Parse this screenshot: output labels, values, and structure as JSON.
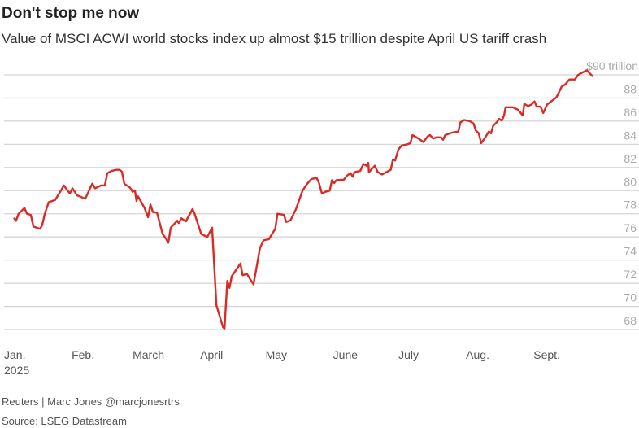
{
  "chart_data": {
    "type": "line",
    "title": "Don't stop me now",
    "subtitle": "Value of MSCI ACWI world stocks index up almost $15 trillion despite April US tariff crash",
    "xlabel": "",
    "ylabel": "$ trillion",
    "y_top_label": "$90 trillion",
    "ylim": [
      68,
      90
    ],
    "yticks": [
      68,
      70,
      72,
      74,
      76,
      78,
      80,
      82,
      84,
      86,
      88
    ],
    "xlim_days": [
      0,
      270
    ],
    "xticks": [
      {
        "day": 0,
        "label": "Jan."
      },
      {
        "day": 31,
        "label": "Feb."
      },
      {
        "day": 59,
        "label": "March"
      },
      {
        "day": 90,
        "label": "April"
      },
      {
        "day": 120,
        "label": "May"
      },
      {
        "day": 151,
        "label": "June"
      },
      {
        "day": 181,
        "label": "July"
      },
      {
        "day": 212,
        "label": "Aug."
      },
      {
        "day": 243,
        "label": "Sept."
      }
    ],
    "year_label": "2025",
    "grid": true,
    "line_color": "#d92b25",
    "series": [
      {
        "name": "MSCI ACWI market value ($ trillion)",
        "points": [
          [
            0,
            77.65
          ],
          [
            1,
            77.4
          ],
          [
            2.2,
            78.0
          ],
          [
            4.9,
            78.5
          ],
          [
            6,
            78.0
          ],
          [
            7.8,
            77.9
          ],
          [
            9,
            76.9
          ],
          [
            12,
            76.7
          ],
          [
            13,
            77.0
          ],
          [
            14.2,
            78.0
          ],
          [
            16,
            79.0
          ],
          [
            19,
            79.2
          ],
          [
            21.6,
            80.0
          ],
          [
            23,
            80.45
          ],
          [
            25.7,
            79.75
          ],
          [
            26.9,
            80.2
          ],
          [
            29,
            79.6
          ],
          [
            32.8,
            79.3
          ],
          [
            35,
            80.2
          ],
          [
            36,
            80.6
          ],
          [
            37.3,
            80.2
          ],
          [
            40,
            80.45
          ],
          [
            41.8,
            80.45
          ],
          [
            42.9,
            81.5
          ],
          [
            44.8,
            81.7
          ],
          [
            47,
            81.8
          ],
          [
            48.5,
            81.8
          ],
          [
            49.6,
            81.65
          ],
          [
            50.7,
            80.6
          ],
          [
            53.4,
            80.25
          ],
          [
            54.5,
            79.9
          ],
          [
            55.6,
            80.0
          ],
          [
            56.3,
            79.1
          ],
          [
            57,
            79.5
          ],
          [
            60,
            78.5
          ],
          [
            61.6,
            77.7
          ],
          [
            62.7,
            78.8
          ],
          [
            63.8,
            78.15
          ],
          [
            65.7,
            78.1
          ],
          [
            68.3,
            76.25
          ],
          [
            70,
            75.8
          ],
          [
            70.9,
            75.5
          ],
          [
            72,
            76.8
          ],
          [
            75,
            77.4
          ],
          [
            75.7,
            77.2
          ],
          [
            76.9,
            77.6
          ],
          [
            79,
            77.35
          ],
          [
            82,
            78.4
          ],
          [
            83,
            78.0
          ],
          [
            86,
            76.25
          ],
          [
            88.8,
            76.0
          ],
          [
            91,
            76.8
          ],
          [
            93,
            70.1
          ],
          [
            96,
            68.2
          ],
          [
            96.7,
            68.1
          ],
          [
            98,
            72.2
          ],
          [
            99,
            71.6
          ],
          [
            100,
            72.6
          ],
          [
            104,
            73.7
          ],
          [
            105,
            72.7
          ],
          [
            107,
            72.8
          ],
          [
            110,
            71.9
          ],
          [
            113,
            75.05
          ],
          [
            114.6,
            75.7
          ],
          [
            117,
            75.8
          ],
          [
            118.7,
            76.3
          ],
          [
            120,
            76.7
          ],
          [
            121,
            78.0
          ],
          [
            124,
            77.9
          ],
          [
            125,
            77.3
          ],
          [
            127,
            77.45
          ],
          [
            129.5,
            78.4
          ],
          [
            132.5,
            80.0
          ],
          [
            134.7,
            80.6
          ],
          [
            136.6,
            81.0
          ],
          [
            139,
            81.1
          ],
          [
            140,
            80.7
          ],
          [
            141.4,
            79.75
          ],
          [
            143,
            79.9
          ],
          [
            145,
            80.0
          ],
          [
            146,
            80.9
          ],
          [
            147,
            80.65
          ],
          [
            148,
            80.9
          ],
          [
            151.5,
            80.95
          ],
          [
            153,
            81.3
          ],
          [
            154.5,
            81.5
          ],
          [
            155.6,
            81.2
          ],
          [
            156.3,
            81.6
          ],
          [
            159,
            81.7
          ],
          [
            160.4,
            82.3
          ],
          [
            161.9,
            82.15
          ],
          [
            162.7,
            82.4
          ],
          [
            163,
            81.6
          ],
          [
            165.7,
            82.15
          ],
          [
            167,
            81.6
          ],
          [
            169,
            81.4
          ],
          [
            173,
            81.8
          ],
          [
            174,
            82.7
          ],
          [
            175,
            82.6
          ],
          [
            176.5,
            83.55
          ],
          [
            178,
            83.9
          ],
          [
            180.6,
            84.0
          ],
          [
            182,
            84.1
          ],
          [
            183,
            84.8
          ],
          [
            185.8,
            84.5
          ],
          [
            188,
            84.2
          ],
          [
            190,
            84.7
          ],
          [
            191,
            84.8
          ],
          [
            192.5,
            84.5
          ],
          [
            194,
            84.6
          ],
          [
            196,
            84.6
          ],
          [
            197,
            84.4
          ],
          [
            198,
            84.8
          ],
          [
            201,
            85.0
          ],
          [
            204,
            85.1
          ],
          [
            205,
            85.9
          ],
          [
            206.7,
            86.1
          ],
          [
            209.3,
            86.0
          ],
          [
            211,
            85.8
          ],
          [
            212,
            85.2
          ],
          [
            213.4,
            84.95
          ],
          [
            214.5,
            84.1
          ],
          [
            216.4,
            84.6
          ],
          [
            218,
            85.1
          ],
          [
            219,
            84.95
          ],
          [
            220,
            85.6
          ],
          [
            221.6,
            85.9
          ],
          [
            222.8,
            86.2
          ],
          [
            224,
            86.05
          ],
          [
            225,
            86.5
          ],
          [
            225.7,
            87.2
          ],
          [
            229,
            87.2
          ],
          [
            231.3,
            87.0
          ],
          [
            233.6,
            86.5
          ],
          [
            234.3,
            87.5
          ],
          [
            236,
            87.3
          ],
          [
            237.7,
            87.45
          ],
          [
            239,
            87.7
          ],
          [
            240,
            87.25
          ],
          [
            241.8,
            87.25
          ],
          [
            243,
            86.7
          ],
          [
            244.8,
            87.45
          ],
          [
            246.6,
            87.7
          ],
          [
            249,
            88.05
          ],
          [
            249.6,
            88.25
          ],
          [
            251.5,
            89.0
          ],
          [
            253,
            89.15
          ],
          [
            255,
            89.6
          ],
          [
            257.5,
            89.6
          ],
          [
            259,
            90.0
          ],
          [
            262,
            90.3
          ],
          [
            263,
            90.4
          ],
          [
            265.7,
            89.85
          ]
        ]
      }
    ]
  },
  "credits": {
    "byline": "Reuters | Marc Jones @marcjonesrtrs",
    "source": "Source: LSEG Datastream"
  }
}
